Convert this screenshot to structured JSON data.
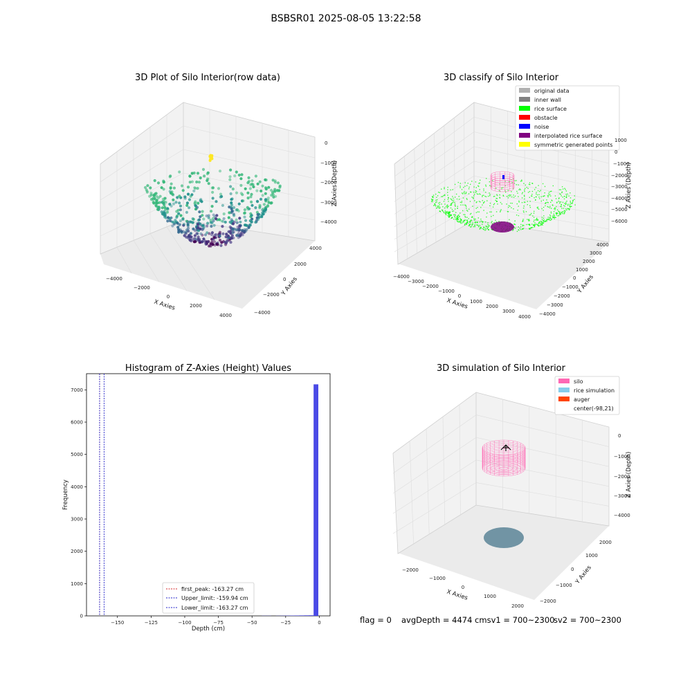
{
  "figure": {
    "suptitle": "BSBSR01 2025-08-05 13:22:58",
    "footer": {
      "flag": "flag = 0",
      "avg_depth": "avgDepth = 4474 cmsv1 = 700~2300",
      "sv2": "sv2 = 700~2300"
    }
  },
  "colors": {
    "viridis_dark": "#440154",
    "viridis_mid": "#31688e",
    "viridis_teal": "#21918c",
    "viridis_green": "#35b779",
    "viridis_yellow": "#fde725",
    "hist_bar": "#4a4ae6",
    "first_peak": "#d62728",
    "limit_line": "#2020c8",
    "rice_surface": "#00ff00",
    "silo_pink": "#ff69b4",
    "rice_sim": "#87ceeb",
    "auger": "#ff4500",
    "rice_disk": "#6a8fa0"
  },
  "chart_data": [
    {
      "type": "scatter",
      "title": "3D Plot of Silo Interior(row data)",
      "xlabel": "X Axies",
      "ylabel": "Y Axies",
      "zlabel": "Z Axies (Depth)",
      "x_ticks": [
        "−4000",
        "−2000",
        "0",
        "2000",
        "4000"
      ],
      "y_ticks": [
        "−4000",
        "−2000",
        "0",
        "2000",
        "4000"
      ],
      "z_ticks": [
        "0",
        "−1000",
        "−2000",
        "−3000",
        "−4000"
      ],
      "xlim": [
        -4500,
        4500
      ],
      "ylim": [
        -4500,
        4500
      ],
      "zlim": [
        -4500,
        0
      ],
      "shape": "bowl point cloud colored by depth (viridis)",
      "approx_point_count": 600
    },
    {
      "type": "scatter",
      "title": "3D classify of Silo Interior",
      "x_ticks": [
        "−4000",
        "−3000",
        "−2000",
        "−1000",
        "0",
        "1000",
        "2000",
        "3000",
        "4000"
      ],
      "y_ticks": [
        "−4000",
        "−3000",
        "−2000",
        "−1000",
        "0",
        "1000",
        "2000",
        "3000",
        "4000"
      ],
      "z_ticks": [
        "1000",
        "0",
        "−1000",
        "−2000",
        "−3000",
        "−4000",
        "−5000",
        "−6000"
      ],
      "xlabel": "X Axies",
      "ylabel": "Y Axies",
      "zlabel": "Z Axies (Depth)",
      "xlim": [
        -4000,
        4000
      ],
      "ylim": [
        -4000,
        4000
      ],
      "zlim": [
        -6000,
        2000
      ],
      "legend": {
        "placement": "top-right",
        "entries": [
          {
            "label": "original data",
            "color": "#b0b0b0"
          },
          {
            "label": "inner wall",
            "color": "#808080"
          },
          {
            "label": "rice surface",
            "color": "#00ff00"
          },
          {
            "label": "obstacle",
            "color": "#ff0000"
          },
          {
            "label": "noise",
            "color": "#0000ff"
          },
          {
            "label": "interpolated rice surface",
            "color": "#800080"
          },
          {
            "label": "symmetric generated points",
            "color": "#ffff00"
          }
        ]
      }
    },
    {
      "type": "bar",
      "title": "Histogram of Z-Axies (Height) Values",
      "xlabel": "Depth (cm)",
      "ylabel": "Frequency",
      "xlim": [
        -173,
        8
      ],
      "ylim": [
        0,
        7500
      ],
      "x_ticks": [
        -150,
        -125,
        -100,
        -75,
        -50,
        -25,
        0
      ],
      "x_tick_labels": [
        "−150",
        "−125",
        "−100",
        "−75",
        "−50",
        "−25",
        "0"
      ],
      "y_ticks": [
        0,
        1000,
        2000,
        3000,
        4000,
        5000,
        6000,
        7000
      ],
      "bin_width": 3.5,
      "bins": [
        {
          "x": -41,
          "count": 4
        },
        {
          "x": -37.5,
          "count": 4
        },
        {
          "x": -30.5,
          "count": 4
        },
        {
          "x": -27,
          "count": 6
        },
        {
          "x": -23.5,
          "count": 8
        },
        {
          "x": -20,
          "count": 10
        },
        {
          "x": -16.5,
          "count": 12
        },
        {
          "x": -13,
          "count": 14
        },
        {
          "x": -9.5,
          "count": 16
        },
        {
          "x": -6,
          "count": 18
        },
        {
          "x": -2.5,
          "count": 7170
        }
      ],
      "vlines": [
        {
          "label": "first_peak: -163.27 cm",
          "x": -163.27,
          "color": "#d62728"
        },
        {
          "label": "Upper_limit: -159.94 cm",
          "x": -159.94,
          "color": "#2020c8"
        },
        {
          "label": "Lower_limit: -163.27 cm",
          "x": -163.27,
          "color": "#2020c8"
        }
      ],
      "legend": {
        "placement": "lower-center"
      }
    },
    {
      "type": "scatter",
      "title": "3D simulation of Silo Interior",
      "x_ticks": [
        "−2000",
        "−1000",
        "0",
        "1000",
        "2000"
      ],
      "y_ticks": [
        "−2000",
        "−1000",
        "0",
        "1000",
        "2000"
      ],
      "z_ticks": [
        "0",
        "−1000",
        "−2000",
        "−3000",
        "−4000"
      ],
      "xlabel": "X Axies",
      "ylabel": "Y Axies",
      "zlabel": "Z Axies (Depth)",
      "xlim": [
        -2500,
        2500
      ],
      "ylim": [
        -2500,
        2500
      ],
      "zlim": [
        -4500,
        0
      ],
      "legend": {
        "placement": "top-right",
        "entries": [
          {
            "label": "silo",
            "color": "#ff69b4"
          },
          {
            "label": "rice simulation",
            "color": "#87ceeb"
          },
          {
            "label": "auger",
            "color": "#ff4500"
          },
          {
            "label": "center(-98,21)",
            "color": "#ffffff"
          }
        ]
      }
    }
  ]
}
